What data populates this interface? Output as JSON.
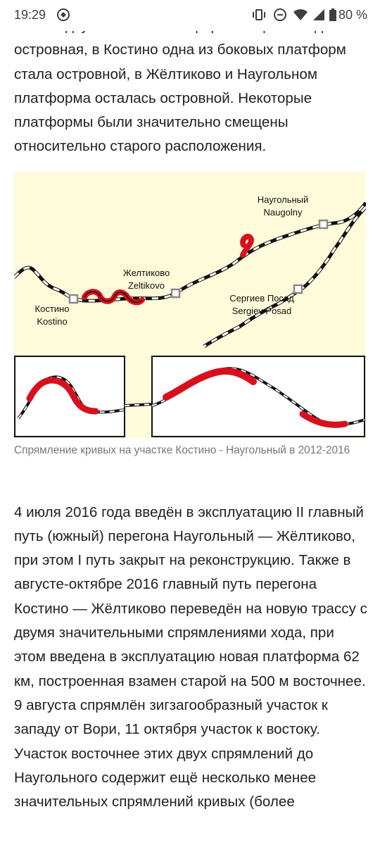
{
  "status_bar": {
    "time": "19:29",
    "battery": "80 %",
    "icons": [
      "data-saver-icon",
      "vibrate-icon",
      "do-not-disturb-icon",
      "wifi-icon",
      "signal-icon",
      "battery-icon"
    ]
  },
  "article": {
    "partial_line": "вместо двух боковых платформ построена одна",
    "paragraph1": "островная, в Костино одна из боковых платформ стала островной, в Жёлтиково и Наугольном платформа осталась островной. Некоторые платформы были значительно смещены относительно старого расположения.",
    "figure": {
      "stations": {
        "naugolny_ru": "Наугольный",
        "naugolny_en": "Naugolny",
        "zeltikovo_ru": "Желтиково",
        "zeltikovo_en": "Zeltikovo",
        "kostino_ru": "Костино",
        "kostino_en": "Kostino",
        "sergiev_ru": "Сергиев Посад",
        "sergiev_en": "Sergiev Posad"
      },
      "colors": {
        "background": "#fdfbd9",
        "track": "#111111",
        "new_route": "#d8101e",
        "station": "#8a8a8a"
      }
    },
    "caption": "Спрямление кривых на участке Костино - Наугольный в 2012-2016",
    "paragraph2": "4 июля 2016 года введён в эксплуатацию II главный путь (южный) перегона Наугольный — Жёлтиково, при этом I путь закрыт на реконструкцию. Также в августе-октябре 2016 главный путь перегона Костино — Жёлтиково переведён на новую трассу с двумя значительными спрямлениями хода, при этом введена в эксплуатацию новая платформа 62 км, построенная взамен старой на 500 м восточнее. 9 августа спрямлён зигзагообразный участок к западу от Вори, 11 октября участок к востоку. Участок восточнее этих двух спрямлений до Наугольного содержит ещё несколько менее значительных спрямлений кривых (более"
  }
}
